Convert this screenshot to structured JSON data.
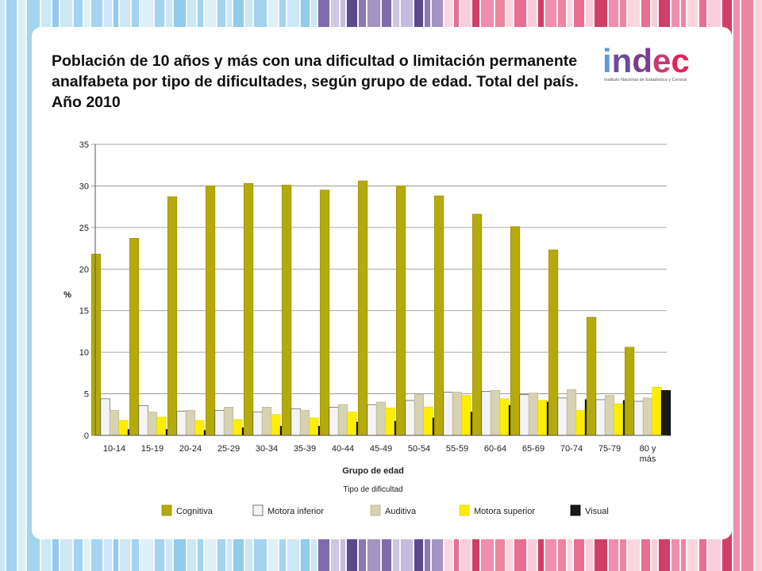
{
  "header": {
    "title": "Población de 10 años y más con una dificultad o limitación permanente analfabeta por tipo de dificultades, según grupo de edad. Total del país. Año 2010"
  },
  "logo": {
    "wordmark": "indec",
    "subtitle": "Instituto Nacional de Estadística y Censos",
    "colors": {
      "i": "#5b9bd5",
      "n": "#6a4c9c",
      "d": "#7a3e8e",
      "e": "#c83a6e",
      "c": "#e0245e"
    }
  },
  "chart_data": {
    "type": "bar",
    "ylabel": "%",
    "xlabel": "Grupo de edad",
    "ylim": [
      0,
      35
    ],
    "yticks": [
      0,
      5,
      10,
      15,
      20,
      25,
      30,
      35
    ],
    "grid": true,
    "legend_title": "Tipo de dificultad",
    "legend_position": "bottom",
    "categories": [
      "10-14",
      "15-19",
      "20-24",
      "25-29",
      "30-34",
      "35-39",
      "40-44",
      "45-49",
      "50-54",
      "55-59",
      "60-64",
      "65-69",
      "70-74",
      "75-79",
      "80 y más"
    ],
    "series": [
      {
        "name": "Cognitiva",
        "color": "#b5aa0b",
        "stroke": "#9a8f00",
        "values": [
          21.8,
          23.7,
          28.7,
          30.0,
          30.3,
          30.1,
          29.5,
          30.6,
          30.0,
          28.8,
          26.6,
          25.1,
          22.3,
          14.2,
          10.6
        ]
      },
      {
        "name": "Motora inferior",
        "color": "#f4f4f4",
        "stroke": "#555555",
        "values": [
          4.4,
          3.6,
          2.9,
          3.0,
          2.8,
          3.2,
          3.4,
          3.7,
          4.2,
          5.2,
          5.3,
          4.9,
          4.5,
          4.3,
          4.1
        ]
      },
      {
        "name": "Auditiva",
        "color": "#d6d2b2",
        "stroke": "#b8b393",
        "values": [
          3.0,
          2.8,
          3.0,
          3.4,
          3.4,
          3.0,
          3.7,
          4.0,
          4.9,
          5.2,
          5.4,
          5.1,
          5.5,
          4.8,
          4.5
        ]
      },
      {
        "name": "Motora superior",
        "color": "#ffee00",
        "stroke": "#e5d600",
        "values": [
          1.8,
          2.2,
          1.8,
          1.9,
          2.5,
          2.1,
          2.8,
          3.3,
          3.4,
          4.8,
          4.4,
          4.2,
          3.0,
          3.8,
          5.8
        ]
      },
      {
        "name": "Visual",
        "color": "#1a1a1a",
        "stroke": "#000000",
        "values": [
          0.7,
          0.7,
          0.6,
          0.9,
          1.1,
          1.1,
          1.6,
          1.7,
          2.1,
          2.8,
          3.6,
          4.0,
          4.3,
          4.2,
          5.4
        ]
      }
    ]
  }
}
